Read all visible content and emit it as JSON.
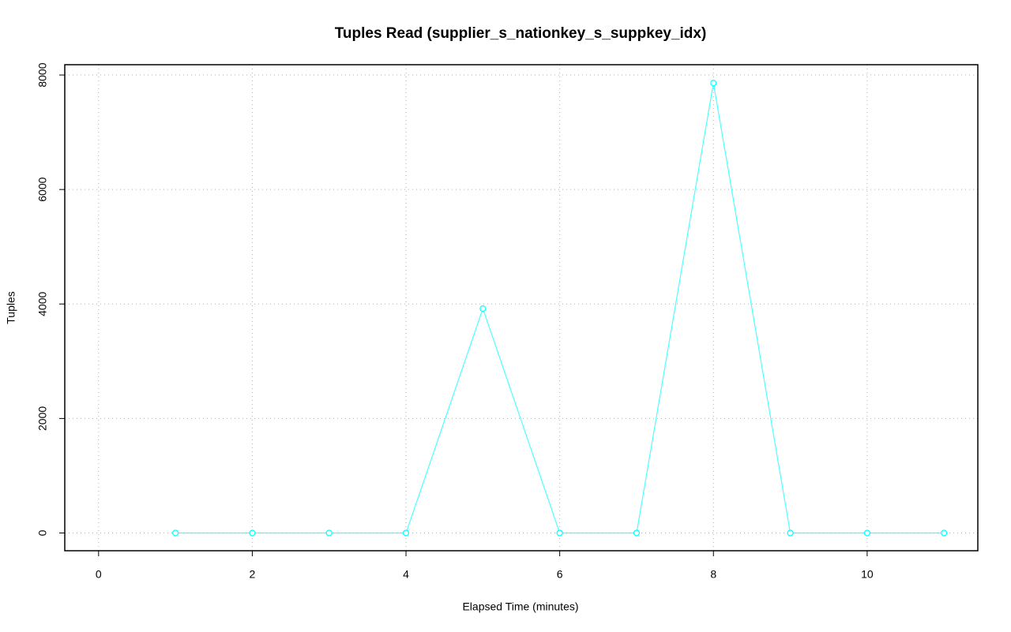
{
  "chart_data": {
    "type": "line",
    "title": "Tuples Read (supplier_s_nationkey_s_suppkey_idx)",
    "x_label": "Elapsed Time (minutes)",
    "y_label": "Tuples",
    "x": [
      1,
      2,
      3,
      4,
      5,
      6,
      7,
      8,
      9,
      10,
      11
    ],
    "series": [
      {
        "name": "Tuples",
        "color": "#00ffff",
        "values": [
          0,
          0,
          0,
          0,
          3920,
          0,
          0,
          7860,
          0,
          0,
          0
        ]
      }
    ],
    "xlim": [
      -0.44,
      11.44
    ],
    "ylim": [
      -310,
      8180
    ],
    "xticks": [
      0,
      2,
      4,
      6,
      8,
      10
    ],
    "yticks": [
      0,
      2000,
      4000,
      6000,
      8000
    ],
    "grid": true
  }
}
